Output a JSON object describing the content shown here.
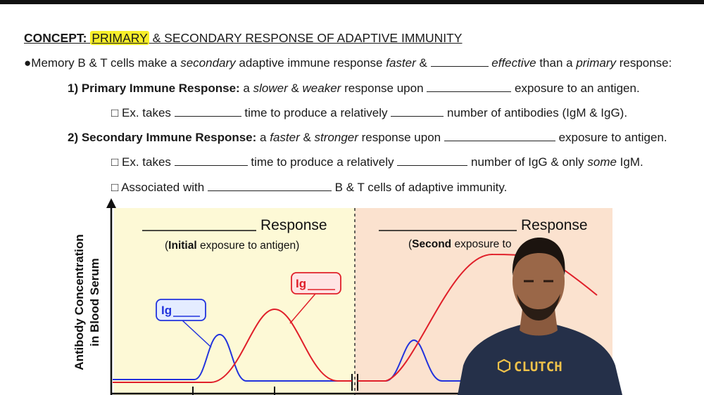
{
  "concept": {
    "prefix": "CONCEPT:",
    "highlight": "PRIMARY",
    "rest": " & SECONDARY RESPONSE OF ADAPTIVE IMMUNITY"
  },
  "bullet": {
    "mark": "●",
    "t1": "Memory B & T cells make a ",
    "t2": "secondary",
    "t3": " adaptive immune response ",
    "t4": "faster",
    "t5": " & ",
    "t6": " ",
    "t7": "effective",
    "t8": " than a ",
    "t9": "primary",
    "t10": " response:"
  },
  "primary": {
    "head": "1) Primary Immune Response:",
    "t1": " a ",
    "t2": "slower",
    "t3": " & ",
    "t4": "weaker",
    "t5": " response upon ",
    "t6": " exposure to an antigen."
  },
  "primary_ex": {
    "box": "□",
    "t1": " Ex. takes ",
    "t2": " time to produce a relatively ",
    "t3": " number of antibodies (IgM & IgG)."
  },
  "secondary": {
    "head": "2) Secondary Immune Response:",
    "t1": " a ",
    "t2": "faster",
    "t3": " & ",
    "t4": "stronger",
    "t5": " response upon ",
    "t6": " exposure to antigen."
  },
  "secondary_ex": {
    "box": "□",
    "t1": " Ex. takes ",
    "t2": " time to produce a relatively ",
    "t3": " number of IgG & only ",
    "t4": "some",
    "t5": " IgM."
  },
  "assoc": {
    "box": "□",
    "t1": " Associated with ",
    "t2": " B & T cells of adaptive immunity."
  },
  "graph": {
    "ylabel_line1": "Antibody Concentration",
    "ylabel_line2": "in Blood Serum",
    "left_title": "Response",
    "left_sub_bold": "Initial",
    "left_sub_rest": " exposure to antigen)",
    "left_open_paren": "(",
    "right_title": "Response",
    "right_sub_bold": "Second",
    "right_sub_rest": " exposure to",
    "right_open_paren": "(",
    "label_blue": "Ig",
    "label_red": "Ig",
    "colors": {
      "left_panel": "#fdf9d6",
      "right_panel": "#fbe2cf",
      "blue_curve": "#2233dd",
      "red_curve": "#e0202a"
    }
  },
  "watermark": {
    "logo": "CLUTCH"
  }
}
